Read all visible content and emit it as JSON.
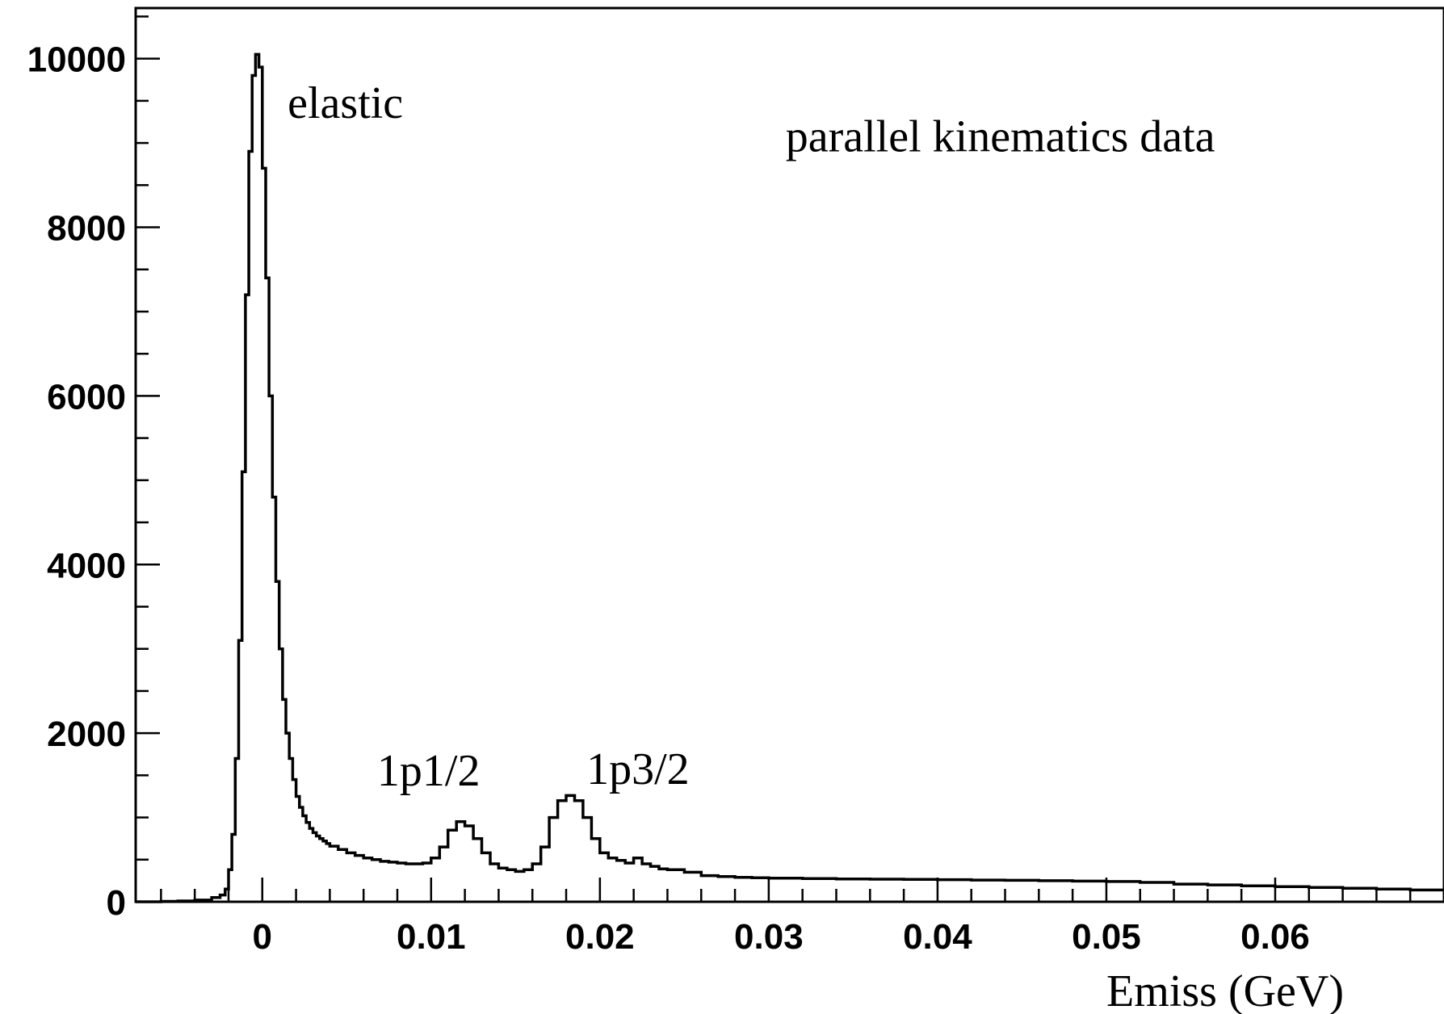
{
  "chart_data": {
    "type": "line",
    "style": "step-histogram",
    "title": "",
    "xlabel": "Emiss (GeV)",
    "ylabel": "",
    "xlim": [
      -0.0075,
      0.07
    ],
    "ylim": [
      0,
      10600
    ],
    "x_ticks": [
      0,
      0.01,
      0.02,
      0.03,
      0.04,
      0.05,
      0.06
    ],
    "x_tick_labels": [
      "0",
      "0.01",
      "0.02",
      "0.03",
      "0.04",
      "0.05",
      "0.06"
    ],
    "y_ticks": [
      0,
      2000,
      4000,
      6000,
      8000,
      10000
    ],
    "y_tick_labels": [
      "0",
      "2000",
      "4000",
      "6000",
      "8000",
      "10000"
    ],
    "grid": false,
    "legend": "none",
    "annotations": [
      {
        "text": "elastic",
        "x": 0.0015,
        "y": 9300
      },
      {
        "text": "parallel kinematics data",
        "x": 0.031,
        "y": 8900
      },
      {
        "text": "1p1/2",
        "x": 0.0068,
        "y": 1380
      },
      {
        "text": "1p3/2",
        "x": 0.0192,
        "y": 1400
      }
    ],
    "series": [
      {
        "x": [
          -0.0075,
          -0.007,
          -0.006,
          -0.005,
          -0.004,
          -0.003,
          -0.0025,
          -0.0022,
          -0.002,
          -0.0018,
          -0.0016,
          -0.0014,
          -0.0012,
          -0.001,
          -0.0008,
          -0.0006,
          -0.0004,
          -0.0002,
          0.0,
          0.0002,
          0.0004,
          0.0006,
          0.0008,
          0.001,
          0.0012,
          0.0014,
          0.0016,
          0.0018,
          0.002,
          0.0022,
          0.0024,
          0.0026,
          0.0028,
          0.003,
          0.0032,
          0.0034,
          0.0036,
          0.0038,
          0.004,
          0.0045,
          0.005,
          0.0055,
          0.006,
          0.0065,
          0.007,
          0.0075,
          0.008,
          0.0085,
          0.009,
          0.0095,
          0.01,
          0.0105,
          0.011,
          0.0115,
          0.012,
          0.0125,
          0.013,
          0.0135,
          0.014,
          0.0145,
          0.015,
          0.0155,
          0.016,
          0.0165,
          0.017,
          0.0175,
          0.018,
          0.0185,
          0.019,
          0.0195,
          0.02,
          0.0205,
          0.021,
          0.0215,
          0.022,
          0.0225,
          0.023,
          0.0235,
          0.024,
          0.025,
          0.026,
          0.027,
          0.028,
          0.029,
          0.03,
          0.032,
          0.034,
          0.036,
          0.038,
          0.04,
          0.042,
          0.044,
          0.046,
          0.048,
          0.05,
          0.052,
          0.054,
          0.056,
          0.058,
          0.06,
          0.062,
          0.064,
          0.066,
          0.068,
          0.07
        ],
        "values": [
          0,
          0,
          5,
          10,
          20,
          50,
          80,
          150,
          380,
          800,
          1700,
          3100,
          5100,
          7200,
          8900,
          9800,
          10050,
          9900,
          8700,
          7400,
          6000,
          4800,
          3800,
          3000,
          2400,
          2000,
          1700,
          1450,
          1250,
          1120,
          1020,
          940,
          870,
          820,
          780,
          750,
          720,
          690,
          660,
          620,
          580,
          550,
          520,
          500,
          480,
          470,
          460,
          450,
          450,
          460,
          520,
          650,
          850,
          950,
          900,
          750,
          580,
          450,
          400,
          380,
          360,
          380,
          450,
          650,
          1000,
          1200,
          1260,
          1200,
          1000,
          750,
          580,
          520,
          490,
          460,
          520,
          450,
          420,
          390,
          380,
          350,
          310,
          300,
          290,
          285,
          280,
          275,
          270,
          268,
          265,
          262,
          258,
          255,
          250,
          245,
          240,
          230,
          210,
          200,
          190,
          180,
          170,
          160,
          150,
          140,
          130
        ]
      }
    ]
  }
}
